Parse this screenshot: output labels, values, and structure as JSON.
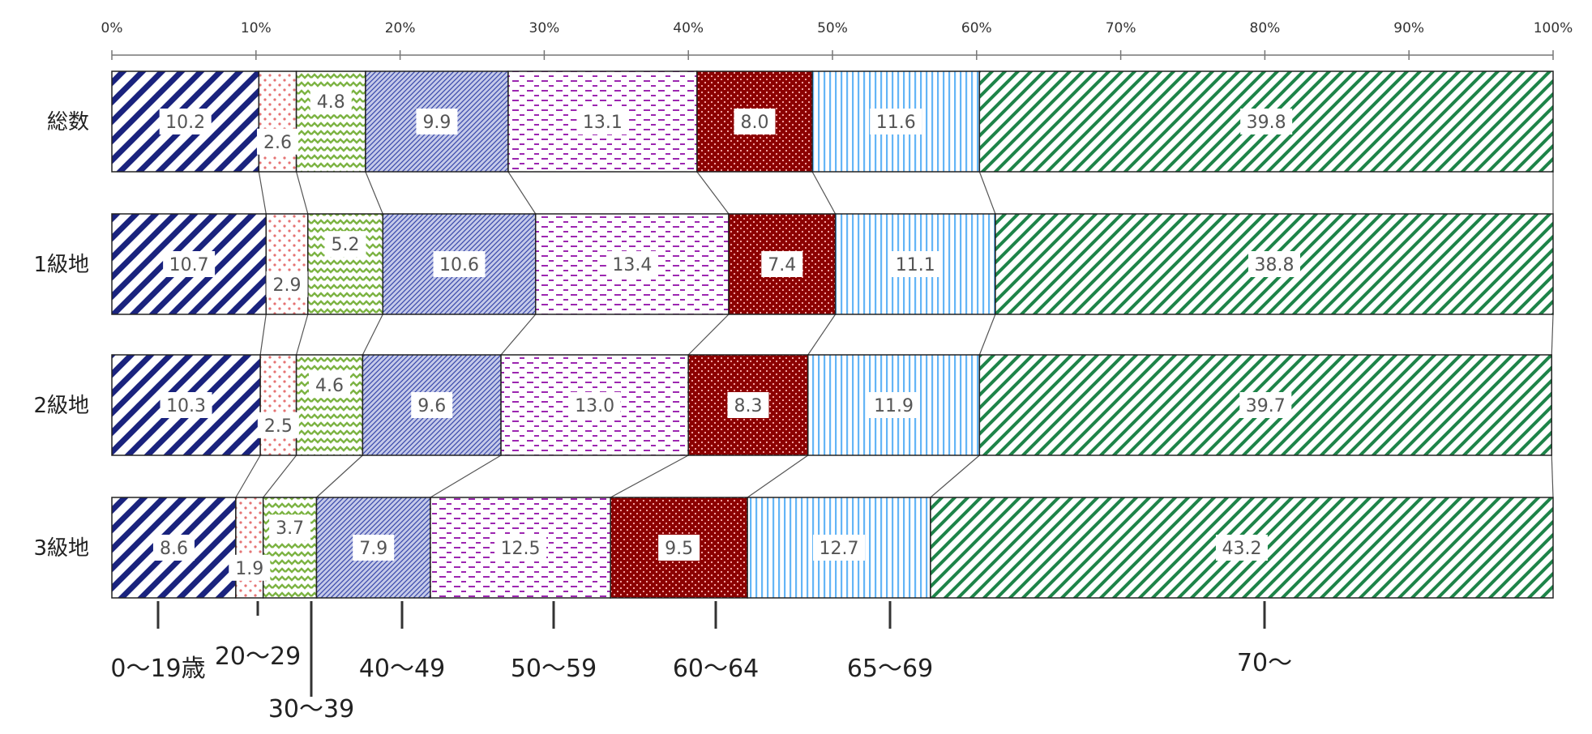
{
  "chart_data": {
    "type": "bar",
    "orientation": "horizontal",
    "stacked": true,
    "title": "",
    "xlabel": "",
    "ylabel": "",
    "xlim": [
      0,
      100
    ],
    "xticks": [
      "0%",
      "10%",
      "20%",
      "30%",
      "40%",
      "50%",
      "60%",
      "70%",
      "80%",
      "90%",
      "100%"
    ],
    "categories": [
      "総数",
      "1級地",
      "2級地",
      "3級地"
    ],
    "legend_position": "bottom",
    "series": [
      {
        "name": "0～19歳",
        "values": [
          10.2,
          10.7,
          10.3,
          8.6
        ],
        "color": "#1a237e"
      },
      {
        "name": "20～29",
        "values": [
          2.6,
          2.9,
          2.5,
          1.9
        ],
        "color": "#e57373"
      },
      {
        "name": "30～39",
        "values": [
          4.8,
          5.2,
          4.6,
          3.7
        ],
        "color": "#7cb342"
      },
      {
        "name": "40～49",
        "values": [
          9.9,
          10.6,
          9.6,
          7.9
        ],
        "color": "#5c6bc0"
      },
      {
        "name": "50～59",
        "values": [
          13.1,
          13.4,
          13.0,
          12.5
        ],
        "color": "#9c27b0"
      },
      {
        "name": "60～64",
        "values": [
          8.0,
          7.4,
          8.3,
          9.5
        ],
        "color": "#8b0000"
      },
      {
        "name": "65～69",
        "values": [
          11.6,
          11.1,
          11.9,
          12.7
        ],
        "color": "#64b5f6"
      },
      {
        "name": "70～",
        "values": [
          39.8,
          38.8,
          39.7,
          43.2
        ],
        "color": "#1e8449"
      }
    ],
    "value_labels": [
      [
        "10.2",
        "2.6",
        "4.8",
        "9.9",
        "13.1",
        "8.0",
        "11.6",
        "39.8"
      ],
      [
        "10.7",
        "2.9",
        "5.2",
        "10.6",
        "13.4",
        "7.4",
        "11.1",
        "38.8"
      ],
      [
        "10.3",
        "2.5",
        "4.6",
        "9.6",
        "13.0",
        "8.3",
        "11.9",
        "39.7"
      ],
      [
        "8.6",
        "1.9",
        "3.7",
        "7.9",
        "12.5",
        "9.5",
        "12.7",
        "43.2"
      ]
    ]
  }
}
